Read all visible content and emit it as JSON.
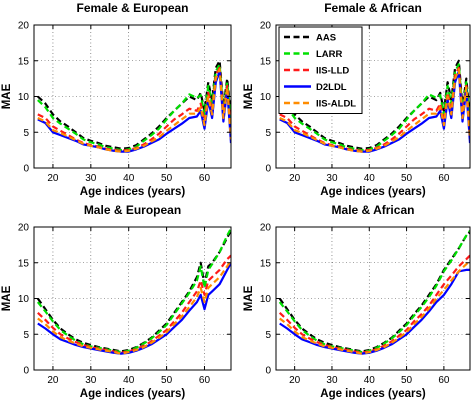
{
  "chart_data": [
    {
      "type": "line",
      "title": "Female & European",
      "xlabel": "Age indices (years)",
      "ylabel": "MAE",
      "xlim": [
        15,
        67
      ],
      "ylim": [
        0,
        20
      ],
      "xticks": [
        "20",
        "30",
        "40",
        "50",
        "60"
      ],
      "yticks": [
        "0",
        "5",
        "10",
        "15",
        "20"
      ],
      "grid": true,
      "legend": null,
      "x": [
        16,
        18,
        20,
        22,
        24,
        26,
        28,
        30,
        32,
        34,
        36,
        38,
        40,
        42,
        44,
        46,
        48,
        50,
        52,
        54,
        56,
        58,
        59,
        60,
        61,
        62,
        63,
        64,
        65,
        66,
        67
      ],
      "series": [
        {
          "name": "AAS",
          "color": "#000000",
          "dashed": true,
          "values": [
            10.0,
            9.0,
            7.5,
            6.5,
            5.8,
            5.0,
            4.2,
            3.8,
            3.5,
            3.1,
            2.9,
            2.7,
            2.8,
            3.2,
            4.0,
            4.8,
            5.8,
            7.0,
            8.0,
            9.0,
            10.0,
            9.5,
            10.5,
            8.0,
            12.0,
            9.5,
            14.0,
            15.0,
            8.5,
            12.5,
            7.0
          ]
        },
        {
          "name": "LARR",
          "color": "#00e000",
          "dashed": true,
          "values": [
            9.5,
            8.5,
            7.0,
            6.2,
            5.5,
            4.8,
            4.0,
            3.6,
            3.3,
            2.9,
            2.7,
            2.5,
            2.6,
            3.0,
            3.8,
            4.6,
            5.5,
            6.8,
            8.0,
            9.0,
            10.3,
            9.8,
            10.2,
            7.5,
            11.5,
            9.0,
            13.5,
            14.5,
            8.0,
            12.0,
            6.5
          ]
        },
        {
          "name": "IIS-LLD",
          "color": "#ff1a1a",
          "dashed": true,
          "values": [
            7.5,
            7.0,
            5.8,
            5.2,
            4.6,
            4.0,
            3.5,
            3.2,
            3.0,
            2.7,
            2.5,
            2.4,
            2.5,
            2.8,
            3.3,
            4.0,
            4.8,
            5.8,
            6.8,
            7.5,
            8.3,
            8.0,
            9.0,
            6.5,
            10.5,
            8.0,
            13.0,
            14.0,
            7.5,
            11.5,
            5.0
          ]
        },
        {
          "name": "D2LDL",
          "color": "#0000ff",
          "dashed": false,
          "values": [
            6.8,
            6.3,
            5.0,
            4.6,
            4.2,
            3.8,
            3.3,
            3.1,
            2.9,
            2.6,
            2.4,
            2.3,
            2.3,
            2.6,
            3.0,
            3.5,
            4.0,
            4.8,
            5.5,
            6.2,
            7.0,
            7.2,
            8.0,
            5.5,
            9.5,
            7.0,
            12.0,
            13.5,
            6.5,
            11.0,
            3.5
          ]
        },
        {
          "name": "IIS-ALDL",
          "color": "#ff8c00",
          "dashed": true,
          "values": [
            7.0,
            6.5,
            5.3,
            4.9,
            4.4,
            3.9,
            3.4,
            3.1,
            2.9,
            2.6,
            2.4,
            2.3,
            2.4,
            2.7,
            3.1,
            3.7,
            4.3,
            5.2,
            6.0,
            6.8,
            7.6,
            7.6,
            8.5,
            6.0,
            10.0,
            7.5,
            12.5,
            13.8,
            7.0,
            11.3,
            4.0
          ]
        }
      ]
    },
    {
      "type": "line",
      "title": "Female & African",
      "xlabel": "Age indices (years)",
      "ylabel": "MAE",
      "xlim": [
        15,
        67
      ],
      "ylim": [
        0,
        20
      ],
      "xticks": [
        "20",
        "30",
        "40",
        "50",
        "60"
      ],
      "yticks": [
        "0",
        "5",
        "10",
        "15",
        "20"
      ],
      "grid": true,
      "legend": "top-left",
      "x": [
        16,
        18,
        20,
        22,
        24,
        26,
        28,
        30,
        32,
        34,
        36,
        38,
        40,
        42,
        44,
        46,
        48,
        50,
        52,
        54,
        56,
        58,
        59,
        60,
        61,
        62,
        63,
        64,
        65,
        66,
        67
      ],
      "series": [
        {
          "name": "AAS",
          "color": "#000000",
          "dashed": true,
          "values": [
            10.0,
            9.0,
            7.5,
            6.5,
            5.8,
            5.0,
            4.2,
            3.8,
            3.5,
            3.1,
            2.9,
            2.7,
            2.8,
            3.2,
            4.0,
            4.8,
            5.8,
            7.0,
            8.0,
            9.0,
            10.0,
            9.5,
            10.5,
            8.0,
            12.0,
            9.5,
            14.0,
            15.0,
            8.5,
            12.5,
            7.0
          ]
        },
        {
          "name": "LARR",
          "color": "#00e000",
          "dashed": true,
          "values": [
            9.5,
            8.5,
            7.0,
            6.2,
            5.5,
            4.8,
            4.0,
            3.6,
            3.3,
            2.9,
            2.7,
            2.5,
            2.6,
            3.0,
            3.8,
            4.6,
            5.5,
            6.8,
            8.0,
            9.0,
            10.3,
            9.8,
            10.2,
            7.5,
            11.5,
            9.0,
            13.5,
            14.5,
            8.0,
            12.0,
            6.5
          ]
        },
        {
          "name": "IIS-LLD",
          "color": "#ff1a1a",
          "dashed": true,
          "values": [
            7.5,
            7.0,
            5.8,
            5.2,
            4.6,
            4.0,
            3.5,
            3.2,
            3.0,
            2.7,
            2.5,
            2.4,
            2.5,
            2.8,
            3.3,
            4.0,
            4.8,
            5.8,
            6.8,
            7.5,
            8.3,
            8.0,
            9.0,
            6.5,
            10.5,
            8.0,
            13.0,
            14.0,
            7.5,
            11.5,
            5.0
          ]
        },
        {
          "name": "D2LDL",
          "color": "#0000ff",
          "dashed": false,
          "values": [
            6.8,
            6.3,
            5.0,
            4.6,
            4.2,
            3.8,
            3.3,
            3.1,
            2.9,
            2.6,
            2.4,
            2.3,
            2.3,
            2.6,
            3.0,
            3.5,
            4.0,
            4.8,
            5.5,
            6.2,
            7.0,
            7.2,
            8.0,
            5.5,
            9.5,
            7.0,
            12.0,
            13.5,
            6.5,
            11.0,
            3.5
          ]
        },
        {
          "name": "IIS-ALDL",
          "color": "#ff8c00",
          "dashed": true,
          "values": [
            7.0,
            6.5,
            5.3,
            4.9,
            4.4,
            3.9,
            3.4,
            3.1,
            2.9,
            2.6,
            2.4,
            2.3,
            2.4,
            2.7,
            3.1,
            3.7,
            4.3,
            5.2,
            6.0,
            6.8,
            7.6,
            7.6,
            8.5,
            6.0,
            10.0,
            7.5,
            12.5,
            13.8,
            7.0,
            11.3,
            4.0
          ]
        }
      ]
    },
    {
      "type": "line",
      "title": "Male & European",
      "xlabel": "Age indices (years)",
      "ylabel": "MAE",
      "xlim": [
        15,
        67
      ],
      "ylim": [
        0,
        20
      ],
      "xticks": [
        "20",
        "30",
        "40",
        "50",
        "60"
      ],
      "yticks": [
        "0",
        "5",
        "10",
        "15",
        "20"
      ],
      "grid": true,
      "legend": null,
      "x": [
        16,
        18,
        20,
        22,
        24,
        26,
        28,
        30,
        32,
        34,
        36,
        38,
        40,
        42,
        44,
        46,
        48,
        50,
        52,
        54,
        56,
        58,
        59,
        60,
        61,
        62,
        64,
        66,
        67
      ],
      "series": [
        {
          "name": "AAS",
          "color": "#000000",
          "dashed": true,
          "values": [
            10.0,
            8.5,
            7.0,
            5.8,
            5.0,
            4.3,
            3.8,
            3.5,
            3.2,
            3.0,
            2.8,
            2.6,
            2.8,
            3.2,
            3.8,
            4.5,
            5.5,
            6.5,
            8.0,
            9.5,
            11.0,
            13.0,
            15.0,
            12.0,
            14.5,
            15.0,
            16.5,
            18.5,
            19.5
          ]
        },
        {
          "name": "LARR",
          "color": "#00e000",
          "dashed": true,
          "values": [
            9.5,
            8.2,
            6.8,
            5.6,
            4.8,
            4.1,
            3.6,
            3.3,
            3.1,
            2.9,
            2.7,
            2.5,
            2.7,
            3.1,
            3.7,
            4.4,
            5.3,
            6.3,
            7.8,
            9.3,
            10.8,
            12.5,
            14.5,
            11.5,
            14.0,
            14.8,
            16.5,
            18.8,
            19.8
          ]
        },
        {
          "name": "IIS-LLD",
          "color": "#ff1a1a",
          "dashed": true,
          "values": [
            8.0,
            7.0,
            5.9,
            5.0,
            4.4,
            3.9,
            3.5,
            3.2,
            3.0,
            2.8,
            2.6,
            2.4,
            2.6,
            2.9,
            3.4,
            4.0,
            4.8,
            5.6,
            6.8,
            8.0,
            9.5,
            11.0,
            12.5,
            10.5,
            12.5,
            13.0,
            14.0,
            15.5,
            16.0
          ]
        },
        {
          "name": "D2LDL",
          "color": "#0000ff",
          "dashed": false,
          "values": [
            6.5,
            5.8,
            5.0,
            4.3,
            3.9,
            3.5,
            3.2,
            3.0,
            2.8,
            2.6,
            2.4,
            2.3,
            2.4,
            2.7,
            3.1,
            3.6,
            4.3,
            5.0,
            6.0,
            7.0,
            8.3,
            9.5,
            10.5,
            8.5,
            10.5,
            11.0,
            12.0,
            14.0,
            15.0
          ]
        },
        {
          "name": "IIS-ALDL",
          "color": "#ff8c00",
          "dashed": true,
          "values": [
            7.2,
            6.4,
            5.4,
            4.6,
            4.1,
            3.7,
            3.3,
            3.1,
            2.9,
            2.7,
            2.5,
            2.3,
            2.5,
            2.8,
            3.2,
            3.8,
            4.5,
            5.3,
            6.4,
            7.5,
            8.8,
            10.2,
            11.5,
            9.5,
            11.5,
            12.0,
            13.0,
            14.5,
            15.3
          ]
        }
      ]
    },
    {
      "type": "line",
      "title": "Male & African",
      "xlabel": "Age indices (years)",
      "ylabel": "MAE",
      "xlim": [
        15,
        67
      ],
      "ylim": [
        0,
        20
      ],
      "xticks": [
        "20",
        "30",
        "40",
        "50",
        "60"
      ],
      "yticks": [
        "0",
        "5",
        "10",
        "15",
        "20"
      ],
      "grid": true,
      "legend": null,
      "x": [
        16,
        18,
        20,
        22,
        24,
        26,
        28,
        30,
        32,
        34,
        36,
        38,
        40,
        42,
        44,
        46,
        48,
        50,
        52,
        54,
        56,
        58,
        60,
        62,
        64,
        66,
        67
      ],
      "series": [
        {
          "name": "AAS",
          "color": "#000000",
          "dashed": true,
          "values": [
            10.0,
            8.5,
            7.0,
            5.8,
            5.0,
            4.3,
            3.8,
            3.5,
            3.2,
            3.0,
            2.8,
            2.6,
            2.8,
            3.2,
            3.8,
            4.5,
            5.5,
            6.5,
            7.8,
            9.0,
            10.5,
            12.0,
            14.0,
            15.5,
            17.0,
            18.8,
            19.3
          ]
        },
        {
          "name": "LARR",
          "color": "#00e000",
          "dashed": true,
          "values": [
            9.5,
            8.2,
            6.8,
            5.6,
            4.8,
            4.1,
            3.6,
            3.3,
            3.1,
            2.9,
            2.7,
            2.5,
            2.7,
            3.1,
            3.7,
            4.4,
            5.3,
            6.3,
            7.6,
            8.8,
            10.2,
            11.8,
            13.8,
            15.3,
            17.0,
            18.8,
            19.5
          ]
        },
        {
          "name": "IIS-LLD",
          "color": "#ff1a1a",
          "dashed": true,
          "values": [
            8.0,
            7.0,
            5.9,
            5.0,
            4.4,
            3.9,
            3.5,
            3.2,
            3.0,
            2.8,
            2.6,
            2.4,
            2.6,
            2.9,
            3.4,
            4.0,
            4.8,
            5.6,
            6.8,
            7.8,
            9.0,
            10.5,
            12.0,
            13.2,
            14.5,
            15.5,
            16.0
          ]
        },
        {
          "name": "D2LDL",
          "color": "#0000ff",
          "dashed": false,
          "values": [
            6.5,
            5.8,
            5.0,
            4.3,
            3.9,
            3.5,
            3.2,
            3.0,
            2.8,
            2.6,
            2.4,
            2.3,
            2.4,
            2.7,
            3.1,
            3.6,
            4.3,
            5.0,
            6.0,
            7.0,
            8.2,
            9.5,
            10.5,
            12.0,
            13.8,
            14.0,
            14.0
          ]
        },
        {
          "name": "IIS-ALDL",
          "color": "#ff8c00",
          "dashed": true,
          "values": [
            7.2,
            6.4,
            5.4,
            4.6,
            4.1,
            3.7,
            3.3,
            3.1,
            2.9,
            2.7,
            2.5,
            2.3,
            2.5,
            2.8,
            3.2,
            3.8,
            4.5,
            5.3,
            6.4,
            7.4,
            8.6,
            10.0,
            11.2,
            12.5,
            13.8,
            14.8,
            15.3
          ]
        }
      ]
    }
  ]
}
